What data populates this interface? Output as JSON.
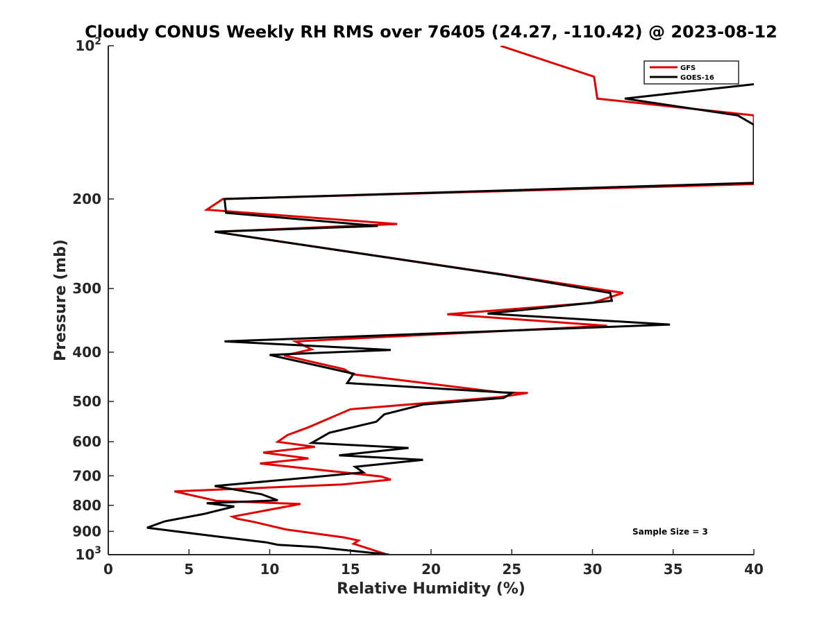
{
  "chart_data": {
    "type": "line",
    "title": "Cloudy CONUS Weekly RH RMS over 76405 (24.27, -110.42) @ 2023-08-12",
    "xlabel": "Relative Humidity (%)",
    "ylabel": "Pressure (mb)",
    "xlim": [
      0,
      40
    ],
    "ylim": [
      100,
      1000
    ],
    "yscale": "log",
    "yreversed": true,
    "x_ticks": [
      "0",
      "5",
      "10",
      "15",
      "20",
      "25",
      "30",
      "35",
      "40"
    ],
    "y_ticks": [
      {
        "value": 100,
        "label": "10",
        "sup": "2"
      },
      {
        "value": 200,
        "label": "200",
        "sup": ""
      },
      {
        "value": 300,
        "label": "300",
        "sup": ""
      },
      {
        "value": 400,
        "label": "400",
        "sup": ""
      },
      {
        "value": 500,
        "label": "500",
        "sup": ""
      },
      {
        "value": 600,
        "label": "600",
        "sup": ""
      },
      {
        "value": 700,
        "label": "700",
        "sup": ""
      },
      {
        "value": 800,
        "label": "800",
        "sup": ""
      },
      {
        "value": 900,
        "label": "900",
        "sup": ""
      },
      {
        "value": 1000,
        "label": "10",
        "sup": "3"
      }
    ],
    "legend": {
      "position": "top-right",
      "entries": [
        "GFS",
        "GOES-16"
      ]
    },
    "annotation": "Sample Size = 3",
    "series": [
      {
        "name": "GFS",
        "color": "#e00000",
        "points": [
          [
            24.3,
            100
          ],
          [
            30.1,
            115
          ],
          [
            30.3,
            127
          ],
          [
            40,
            137
          ],
          [
            40,
            187
          ],
          [
            40,
            187
          ],
          [
            7.1,
            200
          ],
          [
            6.1,
            210
          ],
          [
            17.9,
            224
          ],
          [
            6.6,
            232
          ],
          [
            24.3,
            281
          ],
          [
            31.9,
            306
          ],
          [
            30.0,
            320
          ],
          [
            21.0,
            337
          ],
          [
            30.9,
            355
          ],
          [
            11.6,
            381
          ],
          [
            12.6,
            395
          ],
          [
            10.9,
            406
          ],
          [
            14.6,
            432
          ],
          [
            15.1,
            442
          ],
          [
            24.3,
            480
          ],
          [
            26.0,
            481
          ],
          [
            24.3,
            490
          ],
          [
            15.0,
            518
          ],
          [
            12.4,
            562
          ],
          [
            11.1,
            582
          ],
          [
            10.5,
            600
          ],
          [
            12.8,
            614
          ],
          [
            9.6,
            630
          ],
          [
            12.4,
            647
          ],
          [
            9.4,
            662
          ],
          [
            16.9,
            702
          ],
          [
            17.5,
            712
          ],
          [
            14.5,
            728
          ],
          [
            4.1,
            751
          ],
          [
            6.7,
            784
          ],
          [
            11.9,
            795
          ],
          [
            7.7,
            842
          ],
          [
            8.0,
            850
          ],
          [
            9.0,
            862
          ],
          [
            11.0,
            892
          ],
          [
            14.6,
            925
          ],
          [
            15.5,
            938
          ],
          [
            15.2,
            952
          ],
          [
            17.3,
            1000
          ]
        ]
      },
      {
        "name": "GOES-16",
        "color": "#000000",
        "points": [
          [
            40,
            119
          ],
          [
            32.0,
            127
          ],
          [
            39.0,
            137
          ],
          [
            40,
            143
          ],
          [
            40,
            186
          ],
          [
            7.2,
            200
          ],
          [
            7.3,
            213
          ],
          [
            16.7,
            226
          ],
          [
            6.6,
            232
          ],
          [
            24.5,
            282
          ],
          [
            31.1,
            306
          ],
          [
            31.2,
            317
          ],
          [
            23.5,
            336
          ],
          [
            34.8,
            353
          ],
          [
            7.2,
            381
          ],
          [
            17.5,
            396
          ],
          [
            10.0,
            405
          ],
          [
            15.2,
            441
          ],
          [
            14.8,
            460
          ],
          [
            25.0,
            481
          ],
          [
            24.5,
            492
          ],
          [
            19.5,
            507
          ],
          [
            17.1,
            530
          ],
          [
            16.6,
            548
          ],
          [
            13.7,
            576
          ],
          [
            12.6,
            603
          ],
          [
            18.6,
            617
          ],
          [
            14.3,
            638
          ],
          [
            19.5,
            651
          ],
          [
            15.3,
            672
          ],
          [
            15.8,
            689
          ],
          [
            12.5,
            705
          ],
          [
            6.6,
            733
          ],
          [
            9.5,
            761
          ],
          [
            10.5,
            782
          ],
          [
            6.1,
            792
          ],
          [
            7.8,
            804
          ],
          [
            5.9,
            832
          ],
          [
            3.5,
            860
          ],
          [
            2.4,
            885
          ],
          [
            4.1,
            899
          ],
          [
            6.6,
            920
          ],
          [
            9.8,
            946
          ],
          [
            10.5,
            956
          ],
          [
            12.9,
            966
          ],
          [
            17.4,
            1000
          ]
        ]
      }
    ]
  }
}
